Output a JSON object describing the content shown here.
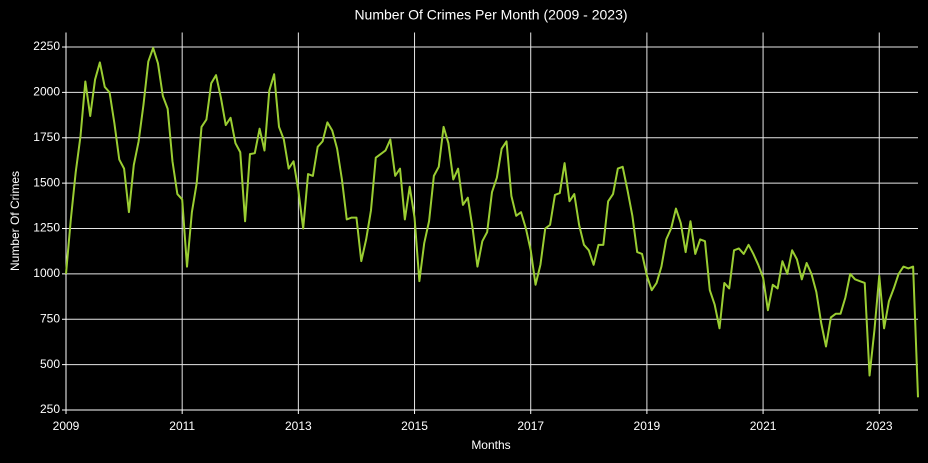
{
  "chart_data": {
    "type": "line",
    "title": "Number Of Crimes Per Month (2009 - 2023)",
    "x_label": "Months",
    "y_label": "Number Of Crimes",
    "color": "#9acd32",
    "grid": true,
    "xlim": [
      2009,
      2023.667
    ],
    "xticks": [
      2009,
      2011,
      2013,
      2015,
      2017,
      2019,
      2021,
      2023
    ],
    "ylim": [
      250,
      2330
    ],
    "yticks": [
      250,
      500,
      750,
      1000,
      1250,
      1500,
      1750,
      2000,
      2250
    ],
    "x": [
      2009,
      2009.083,
      2009.167,
      2009.25,
      2009.333,
      2009.417,
      2009.5,
      2009.583,
      2009.667,
      2009.75,
      2009.833,
      2009.917,
      2010,
      2010.083,
      2010.167,
      2010.25,
      2010.333,
      2010.417,
      2010.5,
      2010.583,
      2010.667,
      2010.75,
      2010.833,
      2010.917,
      2011,
      2011.083,
      2011.167,
      2011.25,
      2011.333,
      2011.417,
      2011.5,
      2011.583,
      2011.667,
      2011.75,
      2011.833,
      2011.917,
      2012,
      2012.083,
      2012.167,
      2012.25,
      2012.333,
      2012.417,
      2012.5,
      2012.583,
      2012.667,
      2012.75,
      2012.833,
      2012.917,
      2013,
      2013.083,
      2013.167,
      2013.25,
      2013.333,
      2013.417,
      2013.5,
      2013.583,
      2013.667,
      2013.75,
      2013.833,
      2013.917,
      2014,
      2014.083,
      2014.167,
      2014.25,
      2014.333,
      2014.417,
      2014.5,
      2014.583,
      2014.667,
      2014.75,
      2014.833,
      2014.917,
      2015,
      2015.083,
      2015.167,
      2015.25,
      2015.333,
      2015.417,
      2015.5,
      2015.583,
      2015.667,
      2015.75,
      2015.833,
      2015.917,
      2016,
      2016.083,
      2016.167,
      2016.25,
      2016.333,
      2016.417,
      2016.5,
      2016.583,
      2016.667,
      2016.75,
      2016.833,
      2016.917,
      2017,
      2017.083,
      2017.167,
      2017.25,
      2017.333,
      2017.417,
      2017.5,
      2017.583,
      2017.667,
      2017.75,
      2017.833,
      2017.917,
      2018,
      2018.083,
      2018.167,
      2018.25,
      2018.333,
      2018.417,
      2018.5,
      2018.583,
      2018.667,
      2018.75,
      2018.833,
      2018.917,
      2019,
      2019.083,
      2019.167,
      2019.25,
      2019.333,
      2019.417,
      2019.5,
      2019.583,
      2019.667,
      2019.75,
      2019.833,
      2019.917,
      2020,
      2020.083,
      2020.167,
      2020.25,
      2020.333,
      2020.417,
      2020.5,
      2020.583,
      2020.667,
      2020.75,
      2020.833,
      2020.917,
      2021,
      2021.083,
      2021.167,
      2021.25,
      2021.333,
      2021.417,
      2021.5,
      2021.583,
      2021.667,
      2021.75,
      2021.833,
      2021.917,
      2022,
      2022.083,
      2022.167,
      2022.25,
      2022.333,
      2022.417,
      2022.5,
      2022.583,
      2022.667,
      2022.75,
      2022.833,
      2022.917,
      2023,
      2023.083,
      2023.167,
      2023.25,
      2023.333,
      2023.417,
      2023.5,
      2023.583,
      2023.667
    ],
    "values": [
      1000,
      1300,
      1560,
      1760,
      2060,
      1870,
      2070,
      2165,
      2030,
      2000,
      1830,
      1630,
      1580,
      1340,
      1600,
      1730,
      1930,
      2170,
      2245,
      2160,
      1980,
      1910,
      1620,
      1440,
      1410,
      1040,
      1340,
      1500,
      1810,
      1850,
      2050,
      2095,
      1970,
      1820,
      1860,
      1720,
      1670,
      1290,
      1660,
      1665,
      1800,
      1680,
      2010,
      2100,
      1810,
      1740,
      1580,
      1620,
      1460,
      1250,
      1550,
      1540,
      1700,
      1730,
      1835,
      1790,
      1690,
      1520,
      1300,
      1310,
      1310,
      1070,
      1190,
      1350,
      1640,
      1660,
      1680,
      1740,
      1540,
      1580,
      1300,
      1480,
      1310,
      960,
      1170,
      1290,
      1540,
      1590,
      1810,
      1720,
      1520,
      1580,
      1380,
      1420,
      1250,
      1040,
      1180,
      1230,
      1450,
      1530,
      1690,
      1730,
      1430,
      1320,
      1340,
      1250,
      1130,
      940,
      1050,
      1250,
      1270,
      1435,
      1445,
      1610,
      1400,
      1440,
      1270,
      1160,
      1130,
      1050,
      1160,
      1160,
      1400,
      1440,
      1580,
      1590,
      1460,
      1320,
      1120,
      1110,
      990,
      910,
      950,
      1040,
      1190,
      1250,
      1360,
      1280,
      1120,
      1290,
      1110,
      1190,
      1180,
      910,
      830,
      700,
      950,
      920,
      1130,
      1140,
      1110,
      1160,
      1110,
      1050,
      980,
      800,
      940,
      920,
      1070,
      1000,
      1130,
      1080,
      970,
      1060,
      1000,
      900,
      730,
      600,
      760,
      780,
      780,
      870,
      1000,
      970,
      960,
      950,
      440,
      690,
      990,
      700,
      850,
      920,
      1000,
      1040,
      1030,
      1040,
      320
    ]
  }
}
